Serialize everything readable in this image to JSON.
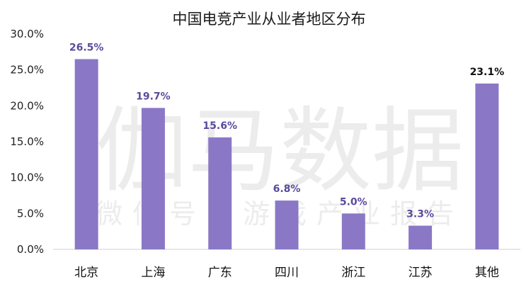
{
  "chart_data": {
    "type": "bar",
    "title": "中国电竞产业从业者地区分布",
    "categories": [
      "北京",
      "上海",
      "广东",
      "四川",
      "浙江",
      "江苏",
      "其他"
    ],
    "values": [
      26.5,
      19.7,
      15.6,
      6.8,
      5.0,
      3.3,
      23.1
    ],
    "data_labels": [
      "26.5%",
      "19.7%",
      "15.6%",
      "6.8%",
      "5.0%",
      "3.3%",
      "23.1%"
    ],
    "y_ticks": [
      "0.0%",
      "5.0%",
      "10.0%",
      "15.0%",
      "20.0%",
      "25.0%",
      "30.0%"
    ],
    "ylim": [
      0,
      30
    ],
    "grid": false,
    "legend": "none",
    "bar_color": "#8A78C6",
    "label_color": "#5B4A9C",
    "last_label_color": "#111111"
  },
  "watermark": {
    "main": "伽马数据",
    "sub": "微信号：游戏产业报告"
  }
}
